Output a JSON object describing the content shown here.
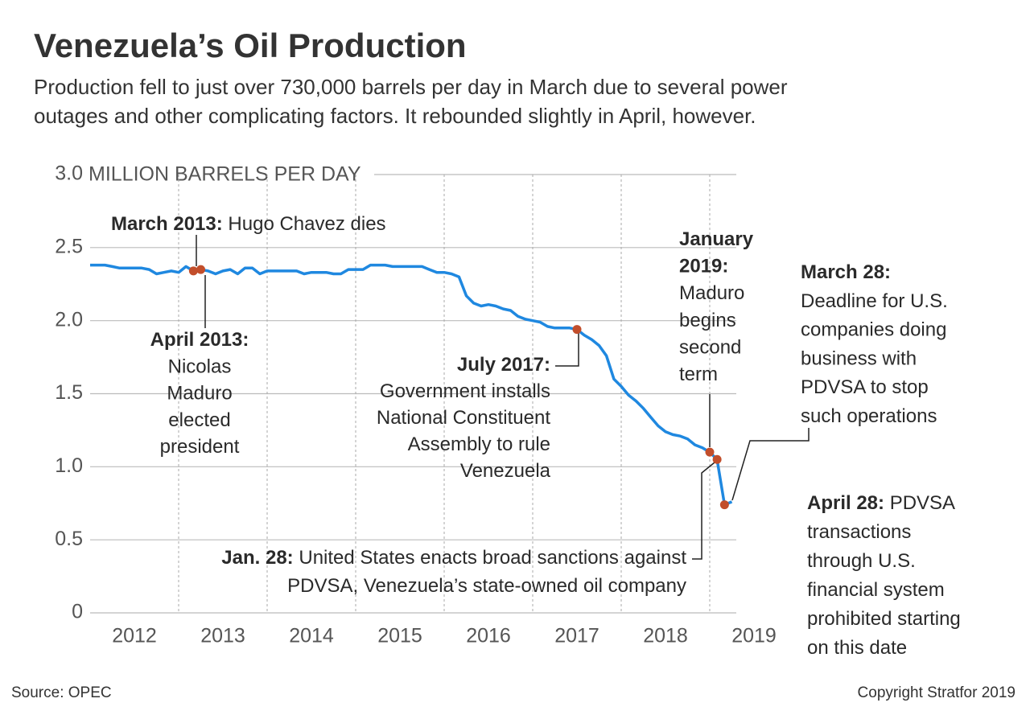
{
  "chart_data": {
    "type": "line",
    "title": "Venezuela’s Oil Production",
    "subtitle": [
      "Production fell to just over 730,000 barrels per day in March due to several power",
      "outages and other complicating factors. It rebounded slightly in April, however."
    ],
    "y_label": "MILLION BARRELS PER DAY",
    "source": "Source: OPEC",
    "credit": "Copyright Stratfor 2019",
    "color": "#1f88e0",
    "marker_color": "#c24e2b",
    "x": [
      2012,
      2012.083,
      2012.167,
      2012.25,
      2012.333,
      2012.417,
      2012.5,
      2012.583,
      2012.667,
      2012.75,
      2012.833,
      2012.917,
      2013,
      2013.083,
      2013.167,
      2013.25,
      2013.333,
      2013.417,
      2013.5,
      2013.583,
      2013.667,
      2013.75,
      2013.833,
      2013.917,
      2014,
      2014.083,
      2014.167,
      2014.25,
      2014.333,
      2014.417,
      2014.5,
      2014.583,
      2014.667,
      2014.75,
      2014.833,
      2014.917,
      2015,
      2015.083,
      2015.167,
      2015.25,
      2015.333,
      2015.417,
      2015.5,
      2015.583,
      2015.667,
      2015.75,
      2015.833,
      2015.917,
      2016,
      2016.083,
      2016.167,
      2016.25,
      2016.333,
      2016.417,
      2016.5,
      2016.583,
      2016.667,
      2016.75,
      2016.833,
      2016.917,
      2017,
      2017.083,
      2017.167,
      2017.25,
      2017.333,
      2017.417,
      2017.5,
      2017.583,
      2017.667,
      2017.75,
      2017.833,
      2017.917,
      2018,
      2018.083,
      2018.167,
      2018.25,
      2018.333,
      2018.417,
      2018.5,
      2018.583,
      2018.667,
      2018.75,
      2018.833,
      2018.917,
      2019,
      2019.083,
      2019.167,
      2019.25
    ],
    "values": [
      2.38,
      2.38,
      2.38,
      2.37,
      2.36,
      2.36,
      2.36,
      2.36,
      2.35,
      2.32,
      2.33,
      2.34,
      2.33,
      2.37,
      2.34,
      2.35,
      2.34,
      2.32,
      2.34,
      2.35,
      2.32,
      2.36,
      2.36,
      2.32,
      2.34,
      2.34,
      2.34,
      2.34,
      2.34,
      2.32,
      2.33,
      2.33,
      2.33,
      2.32,
      2.32,
      2.35,
      2.35,
      2.35,
      2.38,
      2.38,
      2.38,
      2.37,
      2.37,
      2.37,
      2.37,
      2.37,
      2.35,
      2.33,
      2.33,
      2.32,
      2.3,
      2.17,
      2.12,
      2.1,
      2.11,
      2.1,
      2.08,
      2.07,
      2.03,
      2.01,
      2.0,
      1.99,
      1.96,
      1.95,
      1.95,
      1.95,
      1.94,
      1.9,
      1.87,
      1.83,
      1.76,
      1.6,
      1.55,
      1.49,
      1.45,
      1.4,
      1.34,
      1.28,
      1.24,
      1.22,
      1.21,
      1.19,
      1.15,
      1.13,
      1.1,
      1.05,
      0.74,
      0.76
    ],
    "markers": [
      2013.167,
      2013.25,
      2017.5,
      2019,
      2019.083,
      2019.167
    ],
    "xlim": [
      2012,
      2019.3
    ],
    "xticks": [
      {
        "value": 2012.5,
        "label": "2012"
      },
      {
        "value": 2013.5,
        "label": "2013"
      },
      {
        "value": 2014.5,
        "label": "2014"
      },
      {
        "value": 2015.5,
        "label": "2015"
      },
      {
        "value": 2016.5,
        "label": "2016"
      },
      {
        "value": 2017.5,
        "label": "2017"
      },
      {
        "value": 2018.5,
        "label": "2018"
      },
      {
        "value": 2019.5,
        "label": "2019"
      }
    ],
    "xgrid": [
      2013,
      2014,
      2015,
      2016,
      2017,
      2018,
      2019
    ],
    "ylim": [
      0,
      3
    ],
    "yticks": [
      0,
      0.5,
      {
        "value": 1,
        "label": "1.0"
      },
      1.5,
      {
        "value": 2,
        "label": "2.0"
      },
      2.5,
      {
        "value": 3,
        "label": "3.0"
      }
    ],
    "grid": true,
    "annotations": [
      {
        "title": [
          "March 2013:"
        ],
        "text": [
          "Hugo Chavez dies"
        ]
      },
      {
        "title": [
          "April 2013:"
        ],
        "text": [
          "Nicolas",
          "Maduro",
          "elected",
          "president"
        ]
      },
      {
        "title": [
          "July 2017:"
        ],
        "text": [
          "Government installs",
          "National Constituent",
          "Assembly to rule",
          "Venezuela"
        ]
      },
      {
        "title": [
          "January",
          "2019:"
        ],
        "text": [
          "Maduro",
          "begins",
          "second",
          "term"
        ]
      },
      {
        "title": [
          "Jan. 28:"
        ],
        "text": [
          "United States enacts broad sanctions against",
          "PDVSA, Venezuela’s state-owned oil company"
        ]
      },
      {
        "title": [
          "March 28:"
        ],
        "text": [
          "Deadline for U.S.",
          "companies doing",
          "business with",
          "PDVSA to stop",
          "such operations"
        ]
      },
      {
        "title": [
          "April 28:"
        ],
        "text": [
          "PDVSA",
          "transactions",
          "through U.S.",
          "financial system",
          "prohibited starting",
          "on this date"
        ]
      }
    ]
  }
}
